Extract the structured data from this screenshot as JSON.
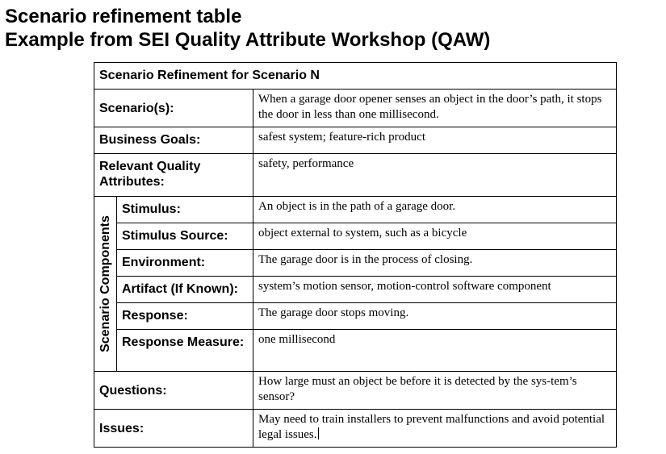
{
  "page": {
    "title_line1": "Scenario refinement table",
    "title_line2": "Example from SEI Quality Attribute Workshop (QAW)"
  },
  "table": {
    "header": "Scenario Refinement for Scenario N",
    "group_label": "Scenario Components",
    "rows": {
      "scenarios": {
        "label": "Scenario(s):",
        "value": "When a garage door opener senses an object in the door’s path, it stops the door in less than one millisecond."
      },
      "business_goals": {
        "label": "Business Goals:",
        "value": "safest system; feature-rich product"
      },
      "quality_attributes": {
        "label": "Relevant Quality Attributes:",
        "value": "safety, performance"
      },
      "stimulus": {
        "label": "Stimulus:",
        "value": "An object is in the path of a garage door."
      },
      "stimulus_source": {
        "label": "Stimulus Source:",
        "value": "object external to system, such as a bicycle"
      },
      "environment": {
        "label": "Environment:",
        "value": "The garage door is in the process of closing."
      },
      "artifact": {
        "label": "Artifact (If Known):",
        "value": "system’s motion sensor, motion-control software component"
      },
      "response": {
        "label": "Response:",
        "value": "The garage door stops moving."
      },
      "response_measure": {
        "label": "Response Measure:",
        "value": "one millisecond"
      },
      "questions": {
        "label": "Questions:",
        "value": "How large must an object be before it is detected by the sys-tem’s sensor?"
      },
      "issues": {
        "label": "Issues:",
        "value": "May need to train installers to prevent malfunctions and avoid potential legal issues."
      }
    }
  }
}
